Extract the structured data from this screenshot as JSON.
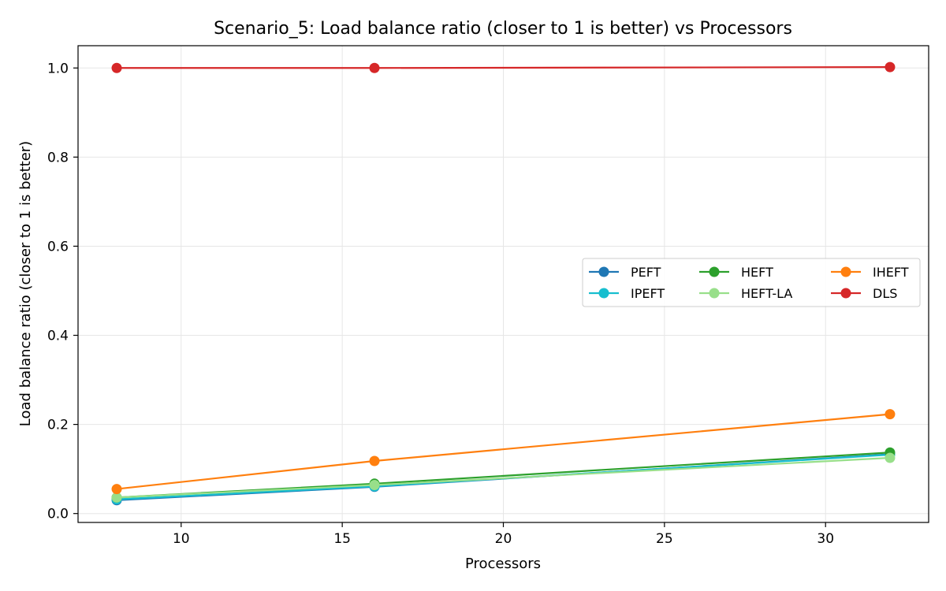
{
  "chart_data": {
    "type": "line",
    "title": "Scenario_5: Load balance ratio (closer to 1 is better) vs Processors",
    "xlabel": "Processors",
    "ylabel": "Load balance ratio (closer to 1 is better)",
    "x": [
      8,
      16,
      32
    ],
    "xlim": [
      6.8,
      33.2
    ],
    "ylim": [
      -0.02,
      1.05
    ],
    "xticks": [
      10,
      15,
      20,
      25,
      30
    ],
    "yticks": [
      0.0,
      0.2,
      0.4,
      0.6,
      0.8,
      1.0
    ],
    "xtick_labels": [
      "10",
      "15",
      "20",
      "25",
      "30"
    ],
    "ytick_labels": [
      "0.0",
      "0.2",
      "0.4",
      "0.6",
      "0.8",
      "1.0"
    ],
    "grid": true,
    "legend_position": "center-right",
    "legend_columns": 3,
    "series": [
      {
        "name": "PEFT",
        "color": "#1f77b4",
        "values": [
          0.03,
          0.06,
          0.133
        ]
      },
      {
        "name": "IPEFT",
        "color": "#17becf",
        "values": [
          0.032,
          0.061,
          0.132
        ]
      },
      {
        "name": "HEFT",
        "color": "#2ca02c",
        "values": [
          0.036,
          0.067,
          0.137
        ]
      },
      {
        "name": "HEFT-LA",
        "color": "#98df8a",
        "values": [
          0.036,
          0.064,
          0.125
        ]
      },
      {
        "name": "IHEFT",
        "color": "#ff7f0e",
        "values": [
          0.055,
          0.118,
          0.223
        ]
      },
      {
        "name": "DLS",
        "color": "#d62728",
        "values": [
          1.0,
          1.0,
          1.002
        ]
      }
    ]
  }
}
